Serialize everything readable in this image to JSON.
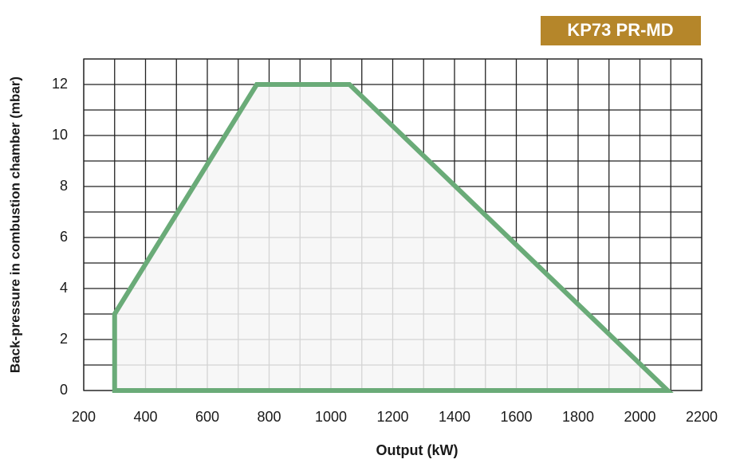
{
  "chart_data": {
    "type": "area",
    "badge": "KP73 PR-MD",
    "x_label": "Output (kW)",
    "y_label": "Back-pressure in combustion chamber (mbar)",
    "series": [
      {
        "color": "#6aab78",
        "x": [
          300,
          300,
          760,
          1060,
          2090,
          300
        ],
        "values": [
          0,
          3,
          12,
          12,
          0,
          0
        ]
      }
    ],
    "xlim": [
      200,
      2200
    ],
    "xticks": [
      200,
      400,
      600,
      800,
      1000,
      1200,
      1400,
      1600,
      1800,
      2000,
      2200
    ],
    "ylim": [
      0,
      13
    ],
    "yticks": [
      0,
      2,
      4,
      6,
      8,
      10,
      12
    ],
    "grid": true
  }
}
